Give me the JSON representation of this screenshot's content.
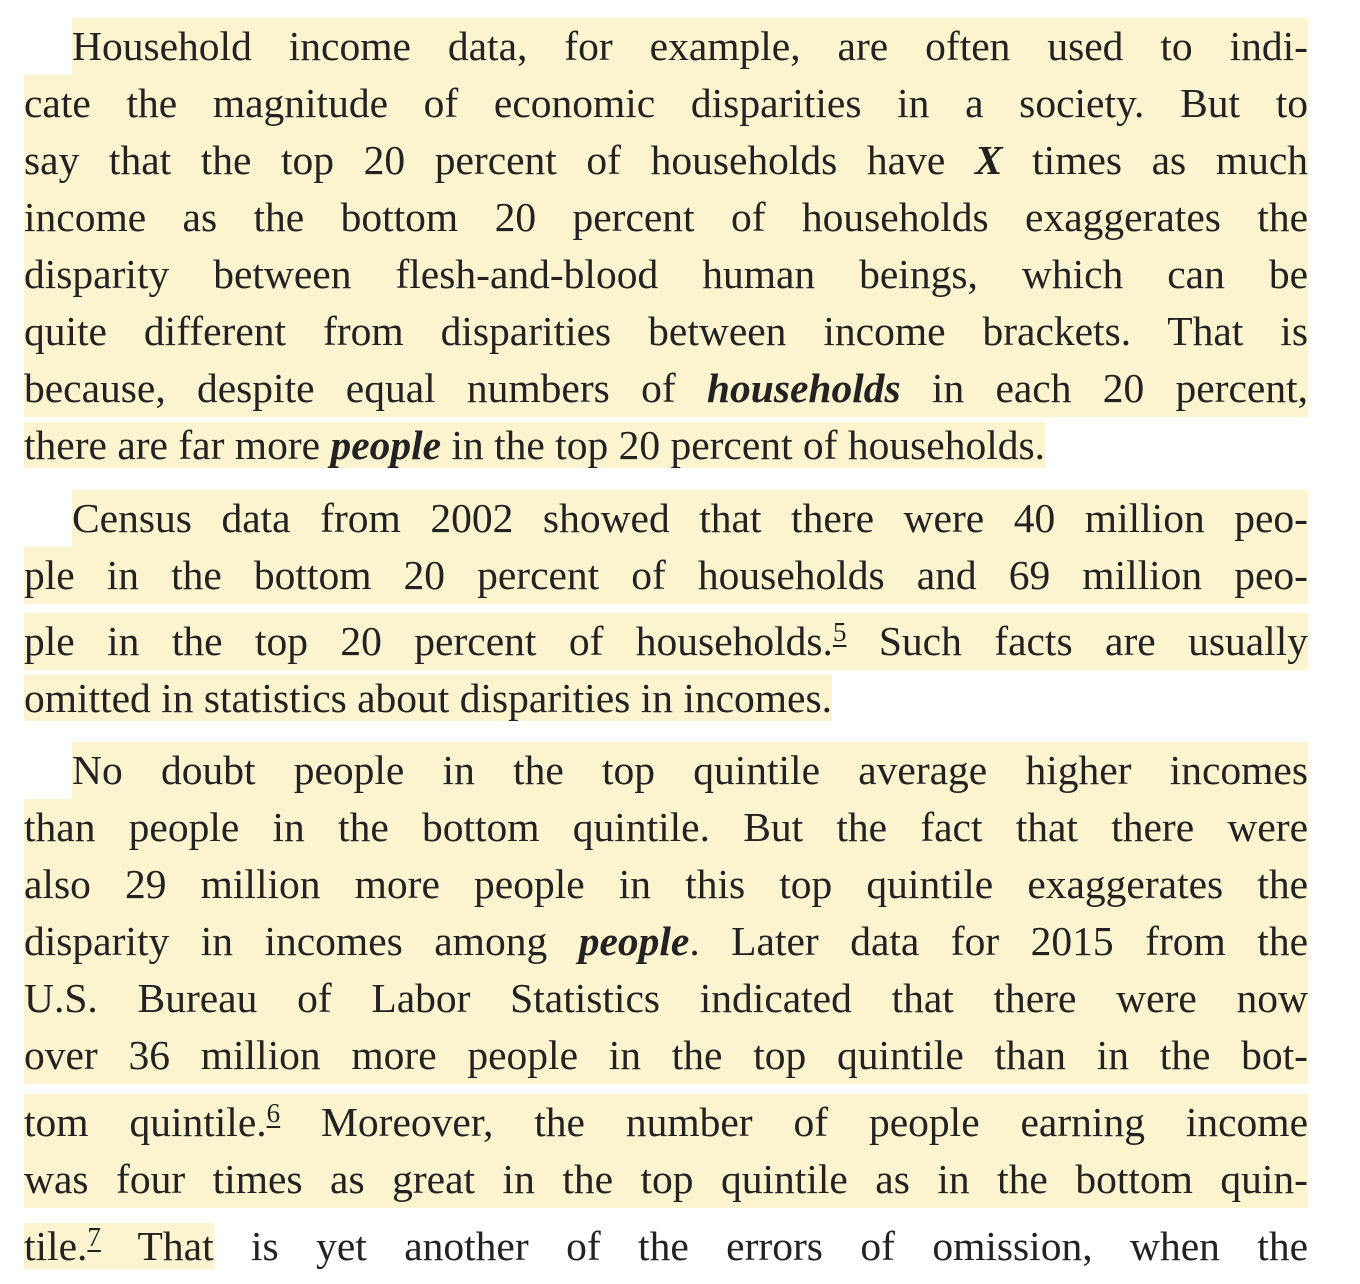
{
  "paragraphs": [
    {
      "lines": [
        "Household income data, for example, are often used to indi-",
        "cate the magnitude of economic disparities in a society. But to",
        [
          "say that the top 20 percent of households have ",
          "X",
          " times as much"
        ],
        "income as the bottom 20 percent of households exaggerates the",
        "disparity between flesh-and-blood human beings, which can be",
        "quite different from disparities between income brackets. That is",
        [
          "because, despite equal numbers of ",
          "households",
          " in each 20 percent,"
        ],
        [
          "there are far more ",
          "people",
          " in the top 20 percent of households."
        ]
      ]
    },
    {
      "lines": [
        "Census data from 2002 showed that there were 40 million peo-",
        "ple in the bottom 20 percent of households and 69 million peo-",
        [
          "ple in the top 20 percent of households.",
          "5",
          " Such facts are usually"
        ],
        "omitted in statistics about disparities in incomes."
      ]
    },
    {
      "lines": [
        "No doubt people in the top quintile average higher incomes",
        "than people in the bottom quintile. But the fact that there were",
        "also 29 million more people in this top quintile exaggerates the",
        [
          "disparity in incomes among ",
          "people",
          ". Later data for 2015 from the"
        ],
        "U.S. Bureau of Labor Statistics indicated that there were now",
        "over 36 million more people in the top quintile than in the bot-",
        [
          "tom quintile.",
          "6",
          " Moreover, the number of people earning income"
        ],
        "was four times as great in the top quintile as in the bottom quin-",
        [
          "tile.",
          "7",
          " That",
          " is yet another of the errors of omission, when the"
        ]
      ]
    }
  ],
  "colors": {
    "highlight": "#fcf4cf",
    "text": "#222222"
  }
}
